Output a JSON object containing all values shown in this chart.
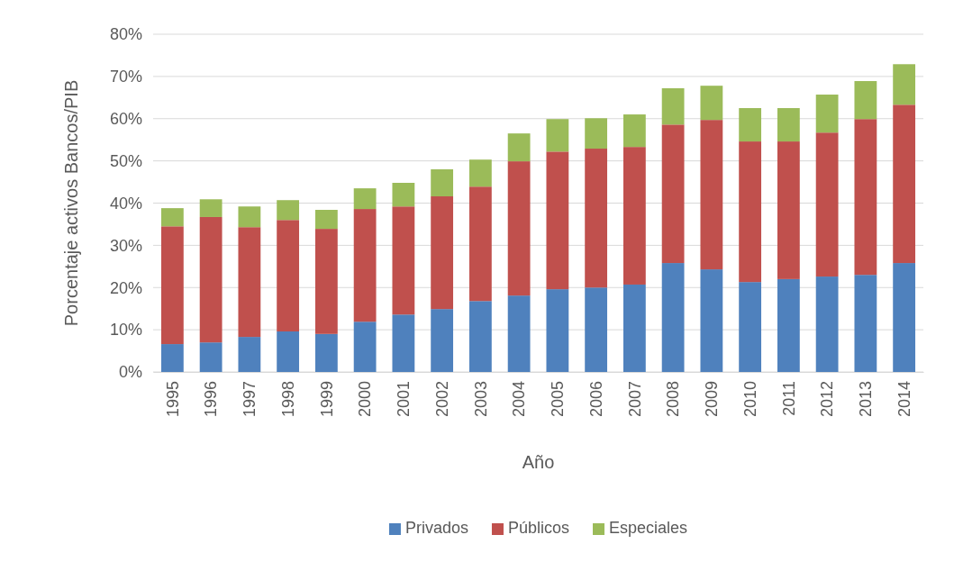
{
  "chart_data": {
    "type": "bar",
    "stacked": true,
    "xlabel": "Año",
    "ylabel": "Porcentaje activos Bancos/PIB",
    "categories": [
      "1995",
      "1996",
      "1997",
      "1998",
      "1999",
      "2000",
      "2001",
      "2002",
      "2003",
      "2004",
      "2005",
      "2006",
      "2007",
      "2008",
      "2009",
      "2010",
      "2011",
      "2012",
      "2013",
      "2014"
    ],
    "series": [
      {
        "name": "Privados",
        "color": "#4f81bd",
        "values": [
          6.6,
          7.0,
          8.3,
          9.6,
          9.0,
          11.9,
          13.6,
          14.9,
          16.8,
          18.1,
          19.6,
          20.0,
          20.7,
          25.8,
          24.3,
          21.3,
          22.0,
          22.6,
          23.0,
          25.8
        ]
      },
      {
        "name": "Públicos",
        "color": "#c0504d",
        "values": [
          27.9,
          29.7,
          26.0,
          26.4,
          24.9,
          26.7,
          25.6,
          26.7,
          27.1,
          31.8,
          32.6,
          32.9,
          32.6,
          32.8,
          35.4,
          33.3,
          32.6,
          34.1,
          36.9,
          37.5
        ]
      },
      {
        "name": "Especiales",
        "color": "#9bbb59",
        "values": [
          4.3,
          4.2,
          4.9,
          4.7,
          4.5,
          4.9,
          5.6,
          6.4,
          6.4,
          6.6,
          7.7,
          7.2,
          7.7,
          8.6,
          8.1,
          7.9,
          7.9,
          9.0,
          9.0,
          9.6
        ]
      }
    ],
    "ylim": [
      0,
      80
    ],
    "yticks": [
      {
        "value": 0,
        "label": "0%"
      },
      {
        "value": 10,
        "label": "10%"
      },
      {
        "value": 20,
        "label": "20%"
      },
      {
        "value": 30,
        "label": "30%"
      },
      {
        "value": 40,
        "label": "40%"
      },
      {
        "value": 50,
        "label": "50%"
      },
      {
        "value": 60,
        "label": "60%"
      },
      {
        "value": 70,
        "label": "70%"
      },
      {
        "value": 80,
        "label": "80%"
      }
    ],
    "grid": "y",
    "legend": "bottom"
  }
}
